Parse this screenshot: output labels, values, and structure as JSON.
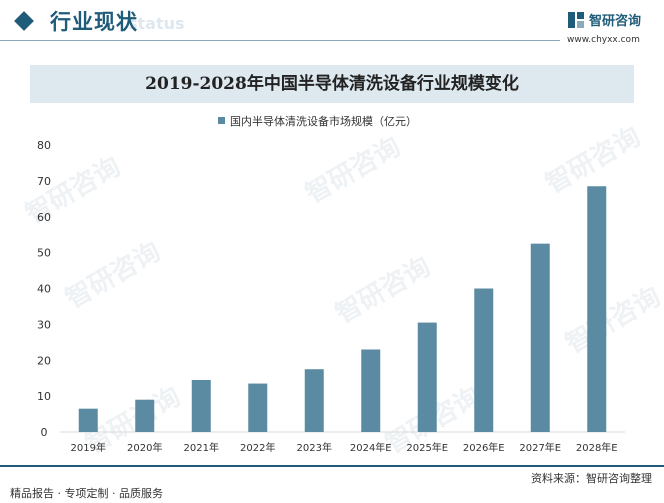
{
  "header": {
    "section_title": "行业现状",
    "watermark_text": "status",
    "brand_name": "智研咨询",
    "brand_url": "www.chyxx.com",
    "brand_color": "#1f5c7a"
  },
  "watermark": {
    "text": "智研咨询"
  },
  "chart_data": {
    "type": "bar",
    "title": "2019-2028年中国半导体清洗设备行业规模变化",
    "xlabel": "",
    "ylabel": "",
    "categories": [
      "2019年",
      "2020年",
      "2021年",
      "2022年",
      "2023年",
      "2024年E",
      "2025年E",
      "2026年E",
      "2027年E",
      "2028年E"
    ],
    "series": [
      {
        "name": "国内半导体清洗设备市场规模（亿元）",
        "values": [
          6.5,
          9,
          14.5,
          13.5,
          17.5,
          23,
          30.5,
          40,
          52.5,
          68.5
        ],
        "color": "#5b8ba3"
      }
    ],
    "ylim": [
      0,
      80
    ],
    "yticks": [
      0,
      10,
      20,
      30,
      40,
      50,
      60,
      70,
      80
    ],
    "grid": false,
    "legend_position": "top"
  },
  "footer": {
    "left_text": "精品报告 · 专项定制 · 品质服务",
    "source_text": "资料来源：智研咨询整理"
  }
}
